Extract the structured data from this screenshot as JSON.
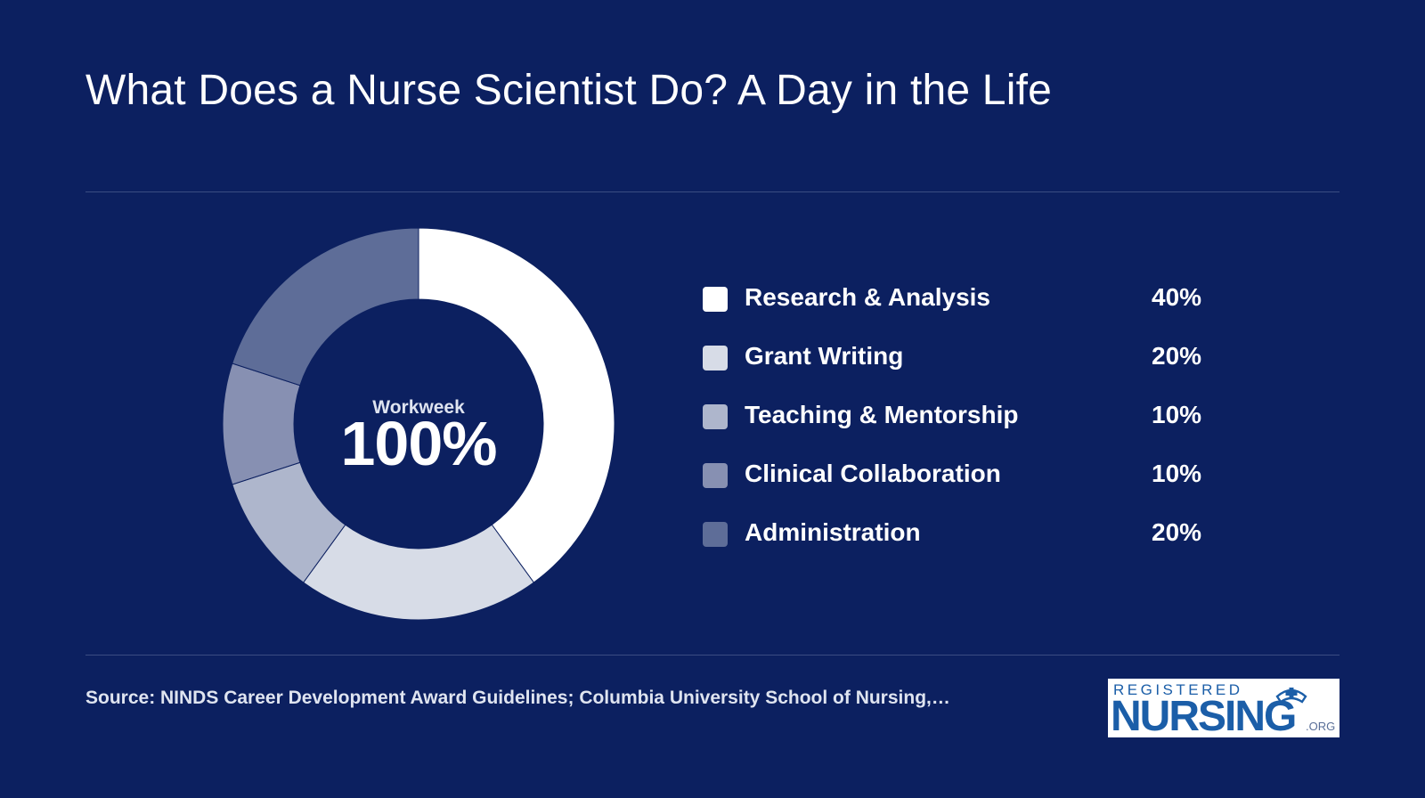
{
  "title": "What Does a Nurse Scientist Do? A Day in the Life",
  "center": {
    "label": "Workweek",
    "value": "100%"
  },
  "legend": [
    {
      "label": "Research & Analysis",
      "value": "40%",
      "color": "#ffffff"
    },
    {
      "label": "Grant Writing",
      "value": "20%",
      "color": "#d7dce7"
    },
    {
      "label": "Teaching & Mentorship",
      "value": "10%",
      "color": "#aeb6cc"
    },
    {
      "label": "Clinical Collaboration",
      "value": "10%",
      "color": "#8790b2"
    },
    {
      "label": "Administration",
      "value": "20%",
      "color": "#5e6d98"
    }
  ],
  "source": "Source: NINDS Career Development Award Guidelines; Columbia University School of Nursing,…",
  "logo": {
    "top": "REGISTERED",
    "main": "NURSING",
    "suffix": ".ORG"
  },
  "colors": {
    "background": "#0c2060",
    "divider": "#3b4d82",
    "logo_blue": "#1b5ea8"
  },
  "chart_data": {
    "type": "pie",
    "variant": "donut",
    "categories": [
      "Research & Analysis",
      "Grant Writing",
      "Teaching & Mentorship",
      "Clinical Collaboration",
      "Administration"
    ],
    "values": [
      40,
      20,
      10,
      10,
      20
    ],
    "colors": [
      "#ffffff",
      "#d7dce7",
      "#aeb6cc",
      "#8790b2",
      "#5e6d98"
    ],
    "legend_position": "right"
  }
}
